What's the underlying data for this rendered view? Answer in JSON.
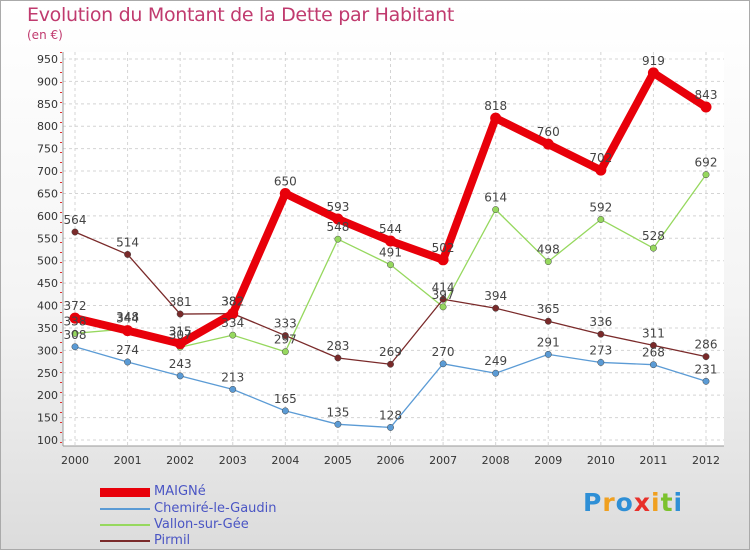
{
  "title": "Evolution du Montant de la Dette par Habitant",
  "unit": "(en €)",
  "brand": {
    "text": "Proxiti",
    "colors": [
      "#2e8fd6",
      "#f0a020",
      "#2e8fd6",
      "#e8302a",
      "#f0a020",
      "#7cc22e",
      "#2e8fd6"
    ]
  },
  "chart_data": {
    "type": "line",
    "title": "Evolution du Montant de la Dette par Habitant",
    "ylabel": "(en €)",
    "xlabel": "",
    "categories": [
      "2000",
      "2001",
      "2002",
      "2003",
      "2004",
      "2005",
      "2006",
      "2007",
      "2008",
      "2009",
      "2010",
      "2011",
      "2012"
    ],
    "ylim": [
      100,
      950
    ],
    "yticks": [
      100,
      150,
      200,
      250,
      300,
      350,
      400,
      450,
      500,
      550,
      600,
      650,
      700,
      750,
      800,
      850,
      900,
      950
    ],
    "grid": true,
    "legend_position": "bottom-left",
    "series": [
      {
        "name": "MAIGNé",
        "color": "#e8000a",
        "values": [
          372,
          344,
          315,
          382,
          650,
          593,
          544,
          502,
          818,
          760,
          702,
          919,
          843
        ]
      },
      {
        "name": "Chemiré-le-Gaudin",
        "color": "#5b9bd5",
        "values": [
          308,
          274,
          243,
          213,
          165,
          135,
          128,
          270,
          249,
          291,
          273,
          268,
          231
        ]
      },
      {
        "name": "Vallon-sur-Gée",
        "color": "#96d85e",
        "values": [
          338,
          348,
          307,
          334,
          297,
          548,
          491,
          397,
          614,
          498,
          592,
          528,
          692
        ]
      },
      {
        "name": "Pirmil",
        "color": "#7a2a2a",
        "values": [
          564,
          514,
          381,
          382,
          333,
          283,
          269,
          414,
          394,
          365,
          336,
          311,
          286
        ]
      }
    ]
  }
}
